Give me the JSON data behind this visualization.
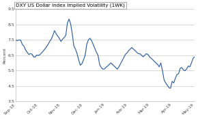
{
  "title": "DXY US Dollar Index Implied Volatility (1WK)",
  "ylabel": "Percent",
  "ylim": [
    3.5,
    9.5
  ],
  "yticks": [
    3.5,
    4.5,
    5.5,
    6.5,
    7.5,
    8.5,
    9.5
  ],
  "xtick_labels": [
    "Sep-18",
    "Oct-18",
    "Nov-18",
    "Dec-18",
    "Jan-19",
    "Feb-19",
    "Mar-19",
    "Apr-19",
    "May-19"
  ],
  "line_color": "#2e5fa3",
  "background_color": "#ffffff",
  "grid_color": "#c8c8c8",
  "values": [
    7.48,
    7.45,
    7.5,
    7.48,
    7.2,
    7.1,
    6.85,
    6.7,
    6.55,
    6.6,
    6.58,
    6.4,
    6.38,
    6.52,
    6.48,
    6.55,
    6.65,
    6.78,
    6.9,
    7.05,
    7.2,
    7.4,
    7.55,
    7.8,
    8.1,
    7.9,
    7.75,
    7.6,
    7.4,
    7.55,
    7.65,
    7.8,
    8.6,
    8.85,
    8.55,
    7.9,
    7.1,
    6.9,
    6.6,
    6.2,
    5.85,
    5.95,
    6.2,
    6.5,
    7.2,
    7.5,
    7.6,
    7.45,
    7.2,
    6.95,
    6.7,
    6.5,
    5.9,
    5.7,
    5.6,
    5.6,
    5.72,
    5.8,
    5.9,
    6.0,
    5.9,
    5.8,
    5.7,
    5.6,
    5.75,
    5.95,
    6.15,
    6.35,
    6.55,
    6.65,
    6.8,
    6.9,
    7.0,
    6.9,
    6.8,
    6.7,
    6.6,
    6.6,
    6.5,
    6.4,
    6.5,
    6.6,
    6.55,
    6.4,
    6.3,
    6.2,
    6.1,
    6.0,
    5.9,
    5.75,
    6.0,
    5.5,
    4.9,
    4.7,
    4.55,
    4.4,
    4.35,
    4.8,
    4.7,
    5.0,
    5.25,
    5.3,
    5.65,
    5.7,
    5.55,
    5.5,
    5.6,
    5.8,
    5.75,
    6.0,
    6.3,
    6.4
  ]
}
